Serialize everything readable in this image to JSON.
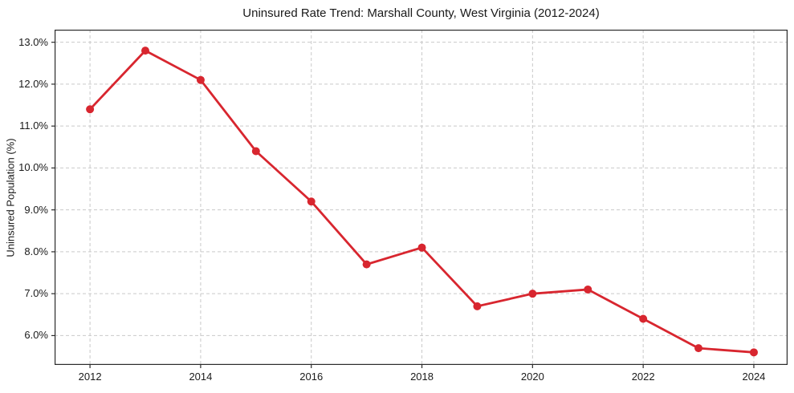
{
  "figure": {
    "background": "#ffffff"
  },
  "chart_data": {
    "type": "line",
    "title": "Uninsured Rate Trend: Marshall County, West Virginia (2012-2024)",
    "xlabel": "",
    "ylabel": "Uninsured Population (%)",
    "series_name": "Uninsured Rate",
    "x": [
      2012,
      2013,
      2014,
      2015,
      2016,
      2017,
      2018,
      2019,
      2020,
      2021,
      2022,
      2023,
      2024
    ],
    "values": [
      11.4,
      12.8,
      12.1,
      10.4,
      9.2,
      7.7,
      8.1,
      6.7,
      7.0,
      7.1,
      6.4,
      5.7,
      5.6
    ],
    "xlim": [
      2011.36,
      2024.61
    ],
    "ylim": [
      5.3,
      13.3
    ],
    "xticks": {
      "values": [
        2012,
        2014,
        2016,
        2018,
        2020,
        2022,
        2024
      ],
      "labels": [
        "2012",
        "2014",
        "2016",
        "2018",
        "2020",
        "2022",
        "2024"
      ]
    },
    "yticks": {
      "values": [
        6,
        7,
        8,
        9,
        10,
        11,
        12,
        13
      ],
      "labels": [
        "6.0%",
        "7.0%",
        "8.0%",
        "9.0%",
        "10.0%",
        "11.0%",
        "12.0%",
        "13.0%"
      ]
    },
    "grid": true,
    "grid_style": "dashed",
    "legend": "none",
    "line_color": "#d8262f",
    "marker": "circle",
    "marker_radius": 5,
    "line_width": 2.8,
    "grid_color": "#c9c9c9",
    "spine_color": "#2b2b2b",
    "text_color": "#1a1a1a"
  }
}
